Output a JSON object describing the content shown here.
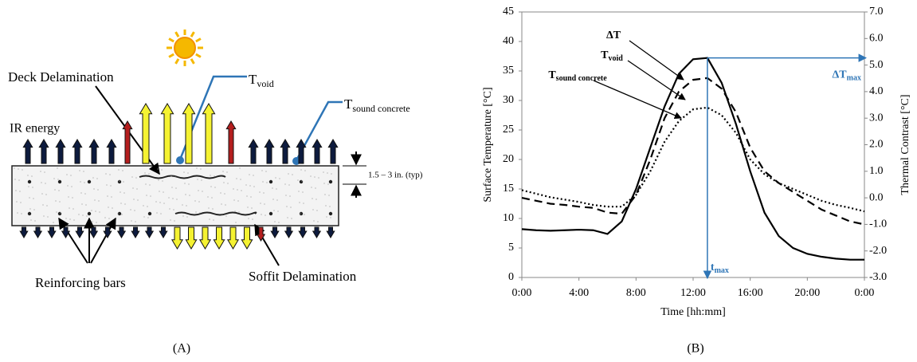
{
  "diagram": {
    "deck_delamination": "Deck Delamination",
    "t_void": {
      "main": "T",
      "sub": "void"
    },
    "t_sound": {
      "main": "T",
      "sub": "sound concrete"
    },
    "ir_energy": "IR energy",
    "thickness": "1.5 – 3 in. (typ)",
    "reinforcing_bars": "Reinforcing bars",
    "soffit_delamination": "Soffit Delamination",
    "panel_label": "(A)"
  },
  "chart_data": {
    "type": "line",
    "panel_label": "(B)",
    "x_label": "Time [hh:mm]",
    "y_label": "Surface Temperature [°C]",
    "y2_label": "Thermal Contrast [°C]",
    "x": [
      0,
      1,
      2,
      3,
      4,
      5,
      6,
      7,
      8,
      9,
      10,
      11,
      12,
      13,
      14,
      15,
      16,
      17,
      18,
      19,
      20,
      21,
      22,
      23,
      24
    ],
    "xlim": [
      0,
      24
    ],
    "xticks": [
      {
        "value": 0,
        "label": "0:00"
      },
      {
        "value": 4,
        "label": "4:00"
      },
      {
        "value": 8,
        "label": "8:00"
      },
      {
        "value": 12,
        "label": "12:00"
      },
      {
        "value": 16,
        "label": "16:00"
      },
      {
        "value": 20,
        "label": "20:00"
      },
      {
        "value": 24,
        "label": "0:00"
      }
    ],
    "ylim": [
      0,
      45
    ],
    "yticks": [
      0,
      5,
      10,
      15,
      20,
      25,
      30,
      35,
      40,
      45
    ],
    "y2lim": [
      -3,
      7
    ],
    "y2ticks": [
      {
        "value": -3,
        "label": "-3.0"
      },
      {
        "value": -2,
        "label": "-2.0"
      },
      {
        "value": -1,
        "label": "-1.0"
      },
      {
        "value": 0,
        "label": "0.0"
      },
      {
        "value": 1,
        "label": "1.0"
      },
      {
        "value": 2,
        "label": "2.0"
      },
      {
        "value": 3,
        "label": "3.0"
      },
      {
        "value": 4,
        "label": "4.0"
      },
      {
        "value": 5,
        "label": "5.0"
      },
      {
        "value": 6,
        "label": "6.0"
      },
      {
        "value": 7,
        "label": "7.0"
      }
    ],
    "series": [
      {
        "name": "ΔT",
        "axis": "y2",
        "color": "#000000",
        "dash": "solid",
        "values": [
          -1.18,
          -1.22,
          -1.24,
          -1.22,
          -1.2,
          -1.22,
          -1.36,
          -0.89,
          0.33,
          1.89,
          3.44,
          4.67,
          5.22,
          5.27,
          4.33,
          2.78,
          1.0,
          -0.56,
          -1.44,
          -1.89,
          -2.11,
          -2.22,
          -2.29,
          -2.33,
          -2.33
        ]
      },
      {
        "name": "T",
        "subscript": "void",
        "color": "#000000",
        "dash": "dashed",
        "values": [
          13.5,
          13,
          12.5,
          12.3,
          12,
          11.8,
          11,
          10.8,
          14,
          20,
          27,
          31.5,
          33.5,
          33.8,
          32,
          28,
          22,
          18,
          16,
          14.5,
          13,
          11.5,
          10.5,
          9.5,
          9
        ]
      },
      {
        "name": "T",
        "subscript": "sound concrete",
        "color": "#000000",
        "dash": "dotted",
        "values": [
          14.8,
          14.2,
          13.6,
          13.2,
          12.8,
          12.3,
          12,
          12,
          14,
          18,
          23,
          26.5,
          28.5,
          28.8,
          27.5,
          24.5,
          20,
          17.5,
          16,
          15,
          14,
          13,
          12.3,
          11.8,
          11.2
        ]
      }
    ],
    "annotations": {
      "dt_max": {
        "main": "ΔT",
        "sub": "max",
        "color": "#2e75b6"
      },
      "t_max": {
        "main": "t",
        "sub": "max",
        "color": "#2e75b6"
      }
    }
  }
}
